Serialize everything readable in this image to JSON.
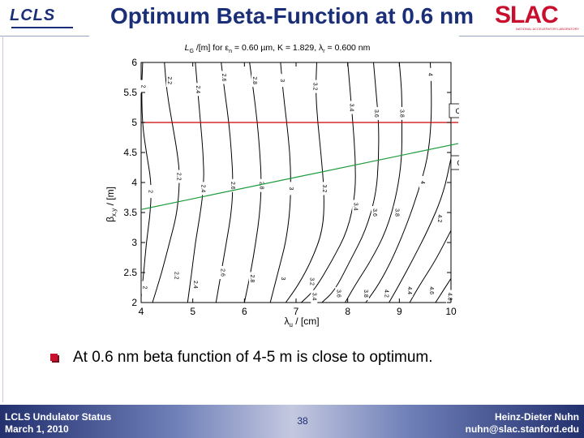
{
  "header": {
    "title": "Optimum Beta-Function at 0.6 nm",
    "left_logo": "LCLS",
    "right_logo": "SLAC",
    "right_logo_sub": "NATIONAL ACCELERATOR LABORATORY"
  },
  "colors": {
    "brand_blue": "#1b2f78",
    "slac_red": "#c8102e",
    "considered_line": "#cc0000",
    "optimum_line": "#1a9a3a"
  },
  "chart_data": {
    "type": "contour",
    "title": "L_G/[m] for ε_n = 0.60 µm, K = 1.829, λ_r = 0.600 nm",
    "title_parts": {
      "a": "L",
      "a_sub": "G",
      "b": " /[m] for ε",
      "b_sub": "n",
      "c": " = 0.60 µm,  K = 1.829, λ",
      "c_sub": "r",
      "d": " = 0.600 nm"
    },
    "xlabel": "λ_u / [cm]",
    "xlabel_parts": {
      "main": "λ",
      "sub": "u",
      "rest": " / [cm]"
    },
    "ylabel": "β_x,y / [m]",
    "ylabel_parts": {
      "main": "β",
      "sub": "x,y",
      "rest": " / [m]"
    },
    "xlim": [
      4,
      10
    ],
    "ylim": [
      2,
      6
    ],
    "x_ticks": [
      "4",
      "5",
      "6",
      "7",
      "8",
      "9",
      "10"
    ],
    "y_ticks": [
      "2",
      "2.5",
      "3",
      "3.5",
      "4",
      "4.5",
      "5",
      "5.5",
      "6"
    ],
    "contour_levels": [
      "2",
      "2.2",
      "2.4",
      "2.6",
      "2.8",
      "3",
      "3.2",
      "3.4",
      "3.6",
      "3.8",
      "4",
      "4.2",
      "4.4",
      "4.6",
      "4.8"
    ],
    "contours": [
      {
        "level": "2",
        "points": [
          [
            4.03,
            6.0
          ],
          [
            4.01,
            5.6
          ],
          [
            4.02,
            5.0
          ],
          [
            4.1,
            4.5
          ],
          [
            4.2,
            4.0
          ],
          [
            4.18,
            3.5
          ],
          [
            4.1,
            3.0
          ],
          [
            4.05,
            2.5
          ],
          [
            4.0,
            2.1
          ]
        ]
      },
      {
        "level": "2.2",
        "points": [
          [
            4.45,
            6.0
          ],
          [
            4.5,
            5.5
          ],
          [
            4.6,
            5.0
          ],
          [
            4.7,
            4.5
          ],
          [
            4.75,
            4.1
          ],
          [
            4.7,
            3.5
          ],
          [
            4.55,
            3.0
          ],
          [
            4.4,
            2.5
          ],
          [
            4.22,
            2.0
          ]
        ]
      },
      {
        "level": "2.4",
        "points": [
          [
            5.05,
            6.0
          ],
          [
            5.1,
            5.5
          ],
          [
            5.15,
            5.0
          ],
          [
            5.2,
            4.5
          ],
          [
            5.22,
            4.0
          ],
          [
            5.15,
            3.5
          ],
          [
            5.05,
            3.0
          ],
          [
            4.98,
            2.5
          ],
          [
            4.9,
            2.0
          ]
        ]
      },
      {
        "level": "2.6",
        "points": [
          [
            5.55,
            6.0
          ],
          [
            5.62,
            5.5
          ],
          [
            5.7,
            5.0
          ],
          [
            5.75,
            4.5
          ],
          [
            5.78,
            4.0
          ],
          [
            5.75,
            3.5
          ],
          [
            5.65,
            3.0
          ],
          [
            5.55,
            2.5
          ],
          [
            5.45,
            2.0
          ]
        ]
      },
      {
        "level": "2.8",
        "points": [
          [
            6.1,
            6.0
          ],
          [
            6.18,
            5.5
          ],
          [
            6.25,
            5.0
          ],
          [
            6.3,
            4.5
          ],
          [
            6.33,
            4.0
          ],
          [
            6.3,
            3.5
          ],
          [
            6.22,
            3.0
          ],
          [
            6.12,
            2.5
          ],
          [
            6.0,
            2.0
          ]
        ]
      },
      {
        "level": "3",
        "points": [
          [
            6.7,
            6.0
          ],
          [
            6.75,
            5.5
          ],
          [
            6.82,
            5.0
          ],
          [
            6.88,
            4.5
          ],
          [
            6.9,
            4.0
          ],
          [
            6.88,
            3.5
          ],
          [
            6.8,
            3.0
          ],
          [
            6.68,
            2.6
          ],
          [
            6.5,
            2.0
          ]
        ]
      },
      {
        "level": "3.2",
        "points": [
          [
            7.4,
            6.0
          ],
          [
            7.38,
            5.5
          ],
          [
            7.42,
            5.0
          ],
          [
            7.48,
            4.5
          ],
          [
            7.55,
            3.8
          ],
          [
            7.52,
            3.2
          ],
          [
            7.3,
            2.7
          ],
          [
            7.05,
            2.3
          ],
          [
            6.8,
            2.0
          ]
        ]
      },
      {
        "level": "3.4",
        "points": [
          [
            8.0,
            6.0
          ],
          [
            8.05,
            5.5
          ],
          [
            8.1,
            5.0
          ],
          [
            8.15,
            4.4
          ],
          [
            8.15,
            3.8
          ],
          [
            8.0,
            3.2
          ],
          [
            7.7,
            2.7
          ],
          [
            7.35,
            2.2
          ],
          [
            7.1,
            2.0
          ]
        ]
      },
      {
        "level": "3.6",
        "points": [
          [
            8.5,
            6.0
          ],
          [
            8.55,
            5.5
          ],
          [
            8.6,
            5.0
          ],
          [
            8.6,
            4.4
          ],
          [
            8.55,
            3.8
          ],
          [
            8.35,
            3.2
          ],
          [
            8.05,
            2.7
          ],
          [
            7.75,
            2.2
          ],
          [
            7.5,
            2.0
          ]
        ]
      },
      {
        "level": "3.8",
        "points": [
          [
            9.0,
            6.0
          ],
          [
            9.05,
            5.5
          ],
          [
            9.05,
            5.0
          ],
          [
            9.05,
            4.4
          ],
          [
            8.95,
            3.8
          ],
          [
            8.75,
            3.2
          ],
          [
            8.45,
            2.7
          ],
          [
            8.15,
            2.3
          ],
          [
            7.95,
            2.0
          ]
        ]
      },
      {
        "level": "4",
        "points": [
          [
            9.6,
            6.0
          ],
          [
            9.62,
            5.6
          ],
          [
            9.62,
            5.0
          ],
          [
            9.55,
            4.4
          ],
          [
            9.35,
            3.8
          ],
          [
            9.1,
            3.2
          ],
          [
            8.85,
            2.7
          ],
          [
            8.6,
            2.3
          ],
          [
            8.35,
            2.0
          ]
        ]
      },
      {
        "level": "4.2",
        "points": [
          [
            10.0,
            4.4
          ],
          [
            9.85,
            3.8
          ],
          [
            9.55,
            3.2
          ],
          [
            9.25,
            2.7
          ],
          [
            9.0,
            2.3
          ],
          [
            8.8,
            2.0
          ]
        ]
      },
      {
        "level": "4.4",
        "points": [
          [
            10.0,
            3.2
          ],
          [
            9.7,
            2.7
          ],
          [
            9.4,
            2.3
          ],
          [
            9.2,
            2.0
          ]
        ]
      },
      {
        "level": "4.6",
        "points": [
          [
            10.0,
            2.4
          ],
          [
            9.85,
            2.2
          ],
          [
            9.7,
            2.0
          ]
        ]
      },
      {
        "level": "4.8",
        "points": [
          [
            10.0,
            2.1
          ],
          [
            9.95,
            2.0
          ]
        ]
      }
    ],
    "contour_labels": [
      {
        "text": "2",
        "x": 4.04,
        "y": 5.6
      },
      {
        "text": "2.2",
        "x": 4.55,
        "y": 5.7
      },
      {
        "text": "2.4",
        "x": 5.1,
        "y": 5.55
      },
      {
        "text": "2.6",
        "x": 5.6,
        "y": 5.75
      },
      {
        "text": "2.8",
        "x": 6.2,
        "y": 5.7
      },
      {
        "text": "3",
        "x": 6.73,
        "y": 5.7
      },
      {
        "text": "3.2",
        "x": 7.37,
        "y": 5.6
      },
      {
        "text": "3.4",
        "x": 8.07,
        "y": 5.25
      },
      {
        "text": "3.6",
        "x": 8.55,
        "y": 5.15
      },
      {
        "text": "3.8",
        "x": 9.05,
        "y": 5.15
      },
      {
        "text": "4",
        "x": 9.6,
        "y": 5.8
      },
      {
        "text": "2",
        "x": 4.18,
        "y": 3.85
      },
      {
        "text": "2.2",
        "x": 4.73,
        "y": 4.1
      },
      {
        "text": "2.4",
        "x": 5.2,
        "y": 3.9
      },
      {
        "text": "2.6",
        "x": 5.77,
        "y": 3.95
      },
      {
        "text": "2.8",
        "x": 6.33,
        "y": 3.95
      },
      {
        "text": "3",
        "x": 6.9,
        "y": 3.9
      },
      {
        "text": "3.2",
        "x": 7.55,
        "y": 3.9
      },
      {
        "text": "3.4",
        "x": 8.15,
        "y": 3.6
      },
      {
        "text": "3.6",
        "x": 8.52,
        "y": 3.5
      },
      {
        "text": "3.8",
        "x": 8.95,
        "y": 3.5
      },
      {
        "text": "4",
        "x": 9.45,
        "y": 4.0
      },
      {
        "text": "4.2",
        "x": 9.78,
        "y": 3.4
      },
      {
        "text": "2",
        "x": 4.07,
        "y": 2.25
      },
      {
        "text": "2.2",
        "x": 4.68,
        "y": 2.45
      },
      {
        "text": "2.4",
        "x": 5.05,
        "y": 2.3
      },
      {
        "text": "2.6",
        "x": 5.58,
        "y": 2.5
      },
      {
        "text": "2.8",
        "x": 6.15,
        "y": 2.4
      },
      {
        "text": "3",
        "x": 6.75,
        "y": 2.4
      },
      {
        "text": "3.2",
        "x": 7.3,
        "y": 2.35
      },
      {
        "text": "3.4",
        "x": 7.35,
        "y": 2.1
      },
      {
        "text": "3.6",
        "x": 7.82,
        "y": 2.15
      },
      {
        "text": "3.8",
        "x": 8.35,
        "y": 2.15
      },
      {
        "text": "4.2",
        "x": 8.75,
        "y": 2.15
      },
      {
        "text": "4.4",
        "x": 9.2,
        "y": 2.2
      },
      {
        "text": "4.6",
        "x": 9.62,
        "y": 2.2
      },
      {
        "text": "4.8",
        "x": 9.97,
        "y": 2.1
      }
    ],
    "lines": [
      {
        "name": "Considered Value",
        "label": "Considered Value",
        "x": [
          4.0,
          10.3
        ],
        "y": [
          5.0,
          5.0
        ],
        "color": "#cc0000"
      },
      {
        "name": "Optimum Value",
        "label": "Optimum Value",
        "x": [
          4.0,
          10.3
        ],
        "y": [
          3.55,
          4.65
        ],
        "color": "#1a9a3a"
      }
    ],
    "grid": false
  },
  "bullet": {
    "text": "At 0.6 nm beta function of 4-5 m is close to optimum."
  },
  "footer": {
    "left_line1": "LCLS Undulator Status",
    "left_line2": "March 1, 2010",
    "page_number": "38",
    "right_line1": "Heinz-Dieter Nuhn",
    "right_line2": "nuhn@slac.stanford.edu"
  }
}
